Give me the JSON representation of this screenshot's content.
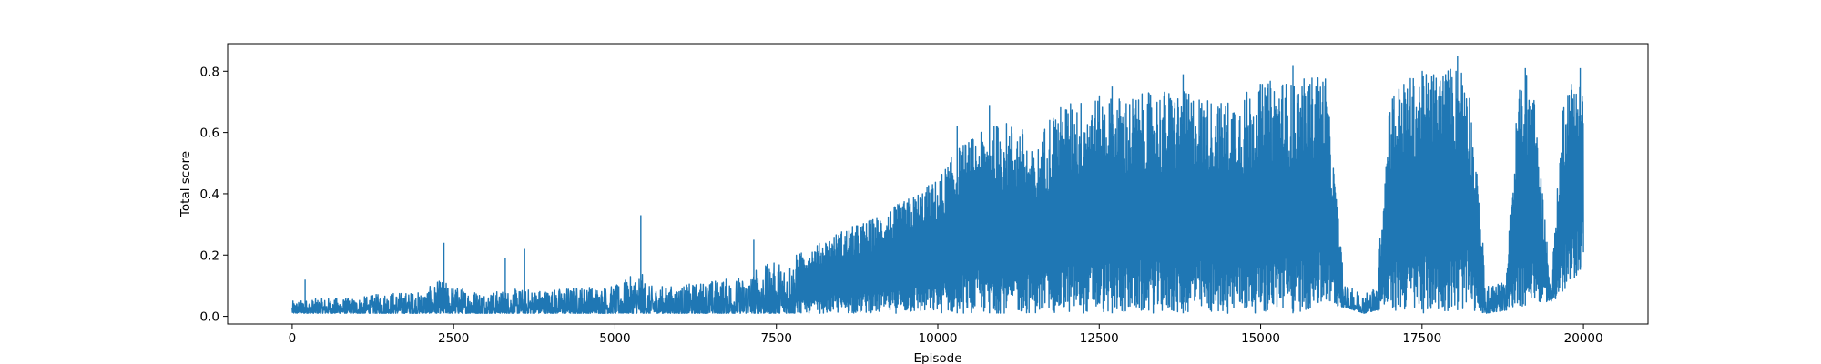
{
  "chart_data": {
    "type": "line",
    "title": "",
    "xlabel": "Episode",
    "ylabel": "Total score",
    "xlim": [
      -1000,
      21000
    ],
    "ylim": [
      -0.025,
      0.89
    ],
    "xticks": [
      0,
      2500,
      5000,
      7500,
      10000,
      12500,
      15000,
      17500,
      20000
    ],
    "xtick_labels": [
      "0",
      "2500",
      "5000",
      "7500",
      "10000",
      "12500",
      "15000",
      "17500",
      "20000"
    ],
    "yticks": [
      0.0,
      0.2,
      0.4,
      0.6,
      0.8
    ],
    "ytick_labels": [
      "0.0",
      "0.2",
      "0.4",
      "0.6",
      "0.8"
    ],
    "grid": false,
    "legend": "none",
    "series": [
      {
        "color": "#1f77b4",
        "episodes": 20000,
        "envelope": {
          "x": [
            0,
            500,
            1000,
            1500,
            2000,
            2300,
            2500,
            3000,
            3500,
            4000,
            4500,
            5000,
            5400,
            5500,
            6000,
            6500,
            7000,
            7200,
            7500,
            7800,
            8000,
            8500,
            9000,
            9500,
            10000,
            10300,
            10500,
            11000,
            11300,
            11500,
            11700,
            12000,
            12500,
            13000,
            13500,
            14000,
            14400,
            14600,
            15000,
            15300,
            15500,
            15800,
            16000,
            16300,
            16600,
            16800,
            17000,
            17300,
            17500,
            18000,
            18200,
            18500,
            18800,
            19000,
            19200,
            19500,
            19700,
            20000
          ],
          "upper": [
            0.05,
            0.06,
            0.06,
            0.08,
            0.08,
            0.12,
            0.1,
            0.08,
            0.09,
            0.09,
            0.1,
            0.1,
            0.15,
            0.1,
            0.1,
            0.12,
            0.13,
            0.16,
            0.18,
            0.2,
            0.22,
            0.28,
            0.32,
            0.38,
            0.45,
            0.55,
            0.58,
            0.64,
            0.62,
            0.52,
            0.66,
            0.7,
            0.72,
            0.72,
            0.74,
            0.73,
            0.7,
            0.72,
            0.76,
            0.78,
            0.76,
            0.79,
            0.8,
            0.1,
            0.08,
            0.1,
            0.74,
            0.78,
            0.8,
            0.82,
            0.83,
            0.1,
            0.12,
            0.78,
            0.8,
            0.1,
            0.76,
            0.8
          ],
          "lower": [
            0.01,
            0.01,
            0.01,
            0.01,
            0.01,
            0.01,
            0.01,
            0.01,
            0.01,
            0.01,
            0.01,
            0.01,
            0.01,
            0.01,
            0.01,
            0.01,
            0.01,
            0.01,
            0.01,
            0.01,
            0.01,
            0.01,
            0.01,
            0.01,
            0.01,
            0.01,
            0.01,
            0.01,
            0.01,
            0.01,
            0.01,
            0.01,
            0.01,
            0.01,
            0.01,
            0.01,
            0.01,
            0.01,
            0.01,
            0.02,
            0.01,
            0.02,
            0.03,
            0.03,
            0.01,
            0.02,
            0.01,
            0.02,
            0.01,
            0.02,
            0.02,
            0.01,
            0.02,
            0.03,
            0.04,
            0.05,
            0.06,
            0.17
          ]
        },
        "peaks": [
          {
            "x": 200,
            "y": 0.12
          },
          {
            "x": 2350,
            "y": 0.24
          },
          {
            "x": 3300,
            "y": 0.19
          },
          {
            "x": 3600,
            "y": 0.22
          },
          {
            "x": 5400,
            "y": 0.33
          },
          {
            "x": 7150,
            "y": 0.25
          },
          {
            "x": 10300,
            "y": 0.62
          },
          {
            "x": 10800,
            "y": 0.69
          },
          {
            "x": 12700,
            "y": 0.75
          },
          {
            "x": 13800,
            "y": 0.79
          },
          {
            "x": 15500,
            "y": 0.82
          },
          {
            "x": 18050,
            "y": 0.85
          },
          {
            "x": 19100,
            "y": 0.81
          },
          {
            "x": 19950,
            "y": 0.81
          }
        ]
      }
    ]
  }
}
